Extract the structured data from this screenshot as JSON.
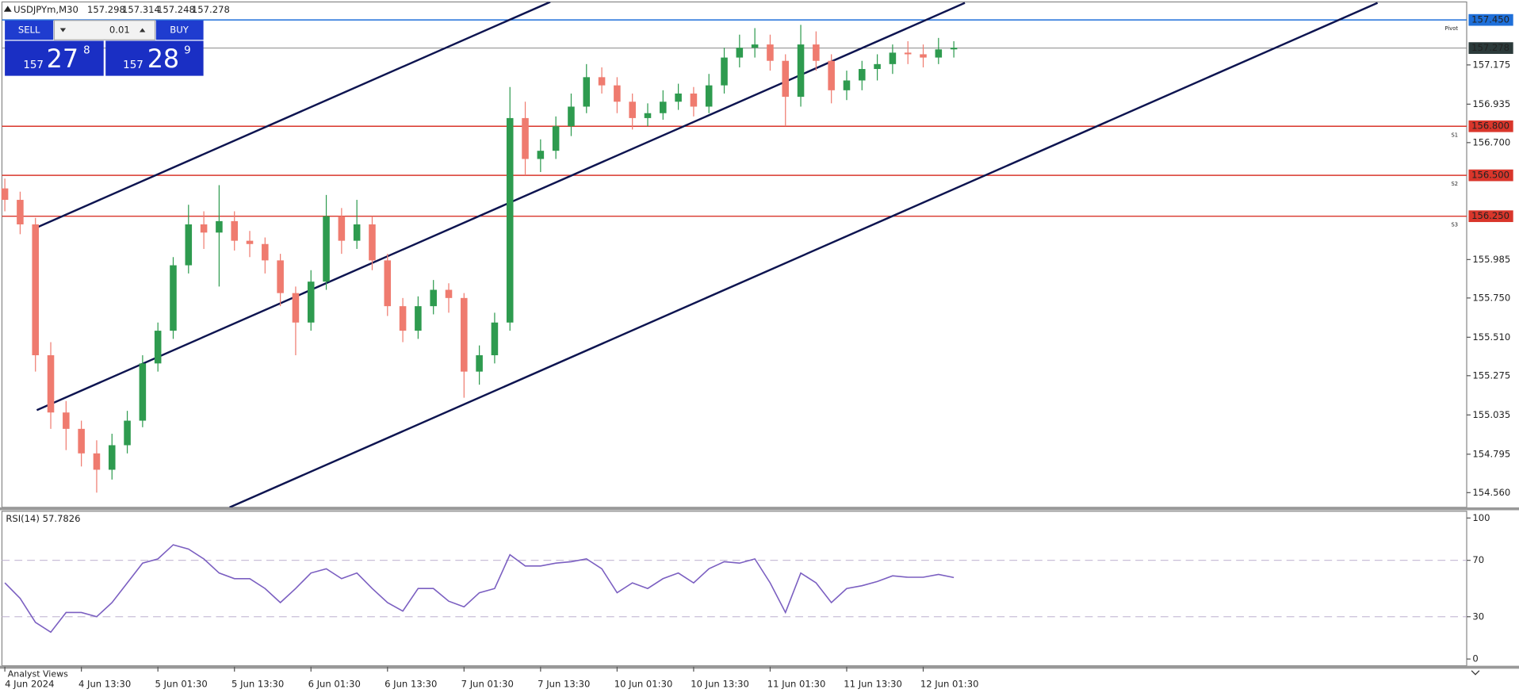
{
  "header": {
    "symbol": "USDJPYm,M30",
    "prices": [
      157.298,
      157.314,
      157.248,
      157.278
    ]
  },
  "trade_panel": {
    "sell": "SELL",
    "buy": "BUY",
    "volume": "0.01",
    "bid": {
      "big": "157",
      "main": "27",
      "small": "8"
    },
    "ask": {
      "big": "157",
      "main": "28",
      "small": "9"
    }
  },
  "bottom_tab": "Analyst Views",
  "chart_data": [
    {
      "type": "candlestick",
      "categories": [
        "4 Jun 2024",
        null,
        null,
        null,
        null,
        "4 Jun 13:30",
        null,
        null,
        null,
        null,
        "5 Jun 01:30",
        null,
        null,
        null,
        null,
        "5 Jun 13:30",
        null,
        null,
        null,
        null,
        "6 Jun 01:30",
        null,
        null,
        null,
        null,
        "6 Jun 13:30",
        null,
        null,
        null,
        null,
        "7 Jun 01:30",
        null,
        null,
        null,
        null,
        "7 Jun 13:30",
        null,
        null,
        null,
        null,
        "10 Jun 01:30",
        null,
        null,
        null,
        null,
        "10 Jun 13:30",
        null,
        null,
        null,
        null,
        "11 Jun 01:30",
        null,
        null,
        null,
        null,
        "11 Jun 13:30",
        null,
        null,
        null,
        null,
        "12 Jun 01:30",
        null,
        null
      ],
      "open": [
        156.42,
        156.35,
        156.2,
        155.4,
        155.05,
        154.95,
        154.8,
        154.7,
        154.85,
        155.0,
        155.35,
        155.55,
        155.95,
        156.2,
        156.15,
        156.22,
        156.1,
        156.08,
        155.98,
        155.78,
        155.6,
        155.85,
        156.25,
        156.1,
        156.2,
        155.98,
        155.7,
        155.55,
        155.7,
        155.8,
        155.75,
        155.3,
        155.4,
        155.6,
        156.85,
        156.6,
        156.65,
        156.8,
        156.92,
        157.1,
        157.05,
        156.95,
        156.85,
        156.88,
        156.95,
        157.0,
        156.92,
        157.05,
        157.22,
        157.28,
        157.3,
        157.2,
        156.98,
        157.3,
        157.2,
        157.02,
        157.08,
        157.15,
        157.18,
        157.25,
        157.24,
        157.22,
        157.27
      ],
      "high": [
        156.48,
        156.4,
        156.24,
        155.48,
        155.12,
        155.0,
        154.88,
        154.92,
        155.06,
        155.4,
        155.6,
        156.0,
        156.32,
        156.28,
        156.44,
        156.28,
        156.16,
        156.12,
        156.02,
        155.82,
        155.92,
        156.38,
        156.3,
        156.35,
        156.25,
        156.02,
        155.75,
        155.76,
        155.86,
        155.84,
        155.78,
        155.46,
        155.66,
        157.04,
        156.95,
        156.72,
        156.86,
        157.0,
        157.18,
        157.16,
        157.1,
        157.0,
        156.94,
        157.02,
        157.06,
        157.04,
        157.12,
        157.28,
        157.36,
        157.4,
        157.36,
        157.24,
        157.42,
        157.38,
        157.24,
        157.14,
        157.2,
        157.24,
        157.3,
        157.32,
        157.3,
        157.34,
        157.32
      ],
      "low": [
        156.28,
        156.14,
        155.3,
        154.95,
        154.82,
        154.72,
        154.56,
        154.64,
        154.8,
        154.96,
        155.3,
        155.5,
        155.9,
        156.05,
        155.82,
        156.04,
        156.0,
        155.9,
        155.7,
        155.4,
        155.55,
        155.8,
        156.02,
        156.05,
        155.92,
        155.64,
        155.48,
        155.5,
        155.65,
        155.66,
        155.14,
        155.22,
        155.35,
        155.55,
        156.5,
        156.52,
        156.6,
        156.74,
        156.88,
        157.0,
        156.88,
        156.78,
        156.8,
        156.84,
        156.9,
        156.86,
        156.88,
        157.0,
        157.16,
        157.22,
        157.14,
        156.8,
        156.92,
        157.14,
        156.94,
        156.96,
        157.02,
        157.08,
        157.12,
        157.18,
        157.16,
        157.18,
        157.22
      ],
      "close": [
        156.35,
        156.2,
        155.4,
        155.05,
        154.95,
        154.8,
        154.7,
        154.85,
        155.0,
        155.35,
        155.55,
        155.95,
        156.2,
        156.15,
        156.22,
        156.1,
        156.08,
        155.98,
        155.78,
        155.6,
        155.85,
        156.25,
        156.1,
        156.2,
        155.98,
        155.7,
        155.55,
        155.7,
        155.8,
        155.75,
        155.3,
        155.4,
        155.6,
        156.85,
        156.6,
        156.65,
        156.8,
        156.92,
        157.1,
        157.05,
        156.95,
        156.85,
        156.88,
        156.95,
        157.0,
        156.92,
        157.05,
        157.22,
        157.28,
        157.3,
        157.2,
        156.98,
        157.3,
        157.2,
        157.02,
        157.08,
        157.15,
        157.18,
        157.25,
        157.24,
        157.22,
        157.27,
        157.28
      ],
      "up_color": "#2e9b4f",
      "down_color": "#ef7b6f",
      "ylim": [
        154.47,
        157.56
      ],
      "yticks": [
        {
          "value": 154.56,
          "label": "154.560"
        },
        {
          "value": 154.795,
          "label": "154.795"
        },
        {
          "value": 155.035,
          "label": "155.035"
        },
        {
          "value": 155.275,
          "label": "155.275"
        },
        {
          "value": 155.51,
          "label": "155.510"
        },
        {
          "value": 155.75,
          "label": "155.750"
        },
        {
          "value": 155.985,
          "label": "155.985"
        },
        {
          "value": 156.7,
          "label": "156.700"
        },
        {
          "value": 156.935,
          "label": "156.935"
        },
        {
          "value": 157.175,
          "label": "157.175"
        }
      ],
      "levels": [
        {
          "name": "Pivot",
          "value": 157.45,
          "label": "157.450",
          "color": "#1e6fd9"
        },
        {
          "name": "S1",
          "value": 156.8,
          "label": "156.800",
          "color": "#d9362b"
        },
        {
          "name": "S2",
          "value": 156.5,
          "label": "156.500",
          "color": "#d9362b"
        },
        {
          "name": "S3",
          "value": 156.25,
          "label": "156.250",
          "color": "#d9362b"
        }
      ],
      "current_price": 157.278
    },
    {
      "type": "line",
      "title": "RSI(14) 57.7826",
      "color": "#7b5fc1",
      "values": [
        54,
        43,
        26,
        19,
        33,
        33,
        30,
        40,
        54,
        68,
        71,
        81,
        78,
        71,
        61,
        57,
        57,
        50,
        40,
        50,
        61,
        64,
        57,
        61,
        50,
        40,
        34,
        50,
        50,
        41,
        37,
        47,
        50,
        74,
        66,
        66,
        68,
        69,
        71,
        64,
        47,
        54,
        50,
        57,
        61,
        54,
        64,
        69,
        68,
        71,
        54,
        33,
        61,
        54,
        40,
        50,
        52,
        55,
        59,
        58,
        58,
        60,
        57.78
      ],
      "ylim": [
        -4.8,
        104.8
      ],
      "yticks": [
        0,
        30,
        70,
        100
      ],
      "dashed_levels": [
        30,
        70
      ]
    }
  ]
}
